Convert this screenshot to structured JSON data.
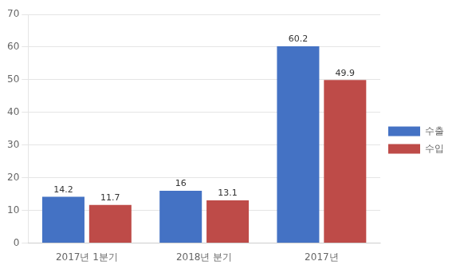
{
  "chart_data": {
    "type": "bar",
    "categories": [
      "2017년 1분기",
      "2018년 분기",
      "2017년"
    ],
    "series": [
      {
        "name": "수출",
        "color": "#4472C4",
        "values": [
          14.2,
          16,
          60.2
        ]
      },
      {
        "name": "수입",
        "color": "#BE4B48",
        "values": [
          11.7,
          13.1,
          49.9
        ]
      }
    ],
    "ylim": [
      0,
      70
    ],
    "yticks": [
      0,
      10,
      20,
      30,
      40,
      50,
      60,
      70
    ],
    "grid": true,
    "legend": "right",
    "data_labels": true
  }
}
